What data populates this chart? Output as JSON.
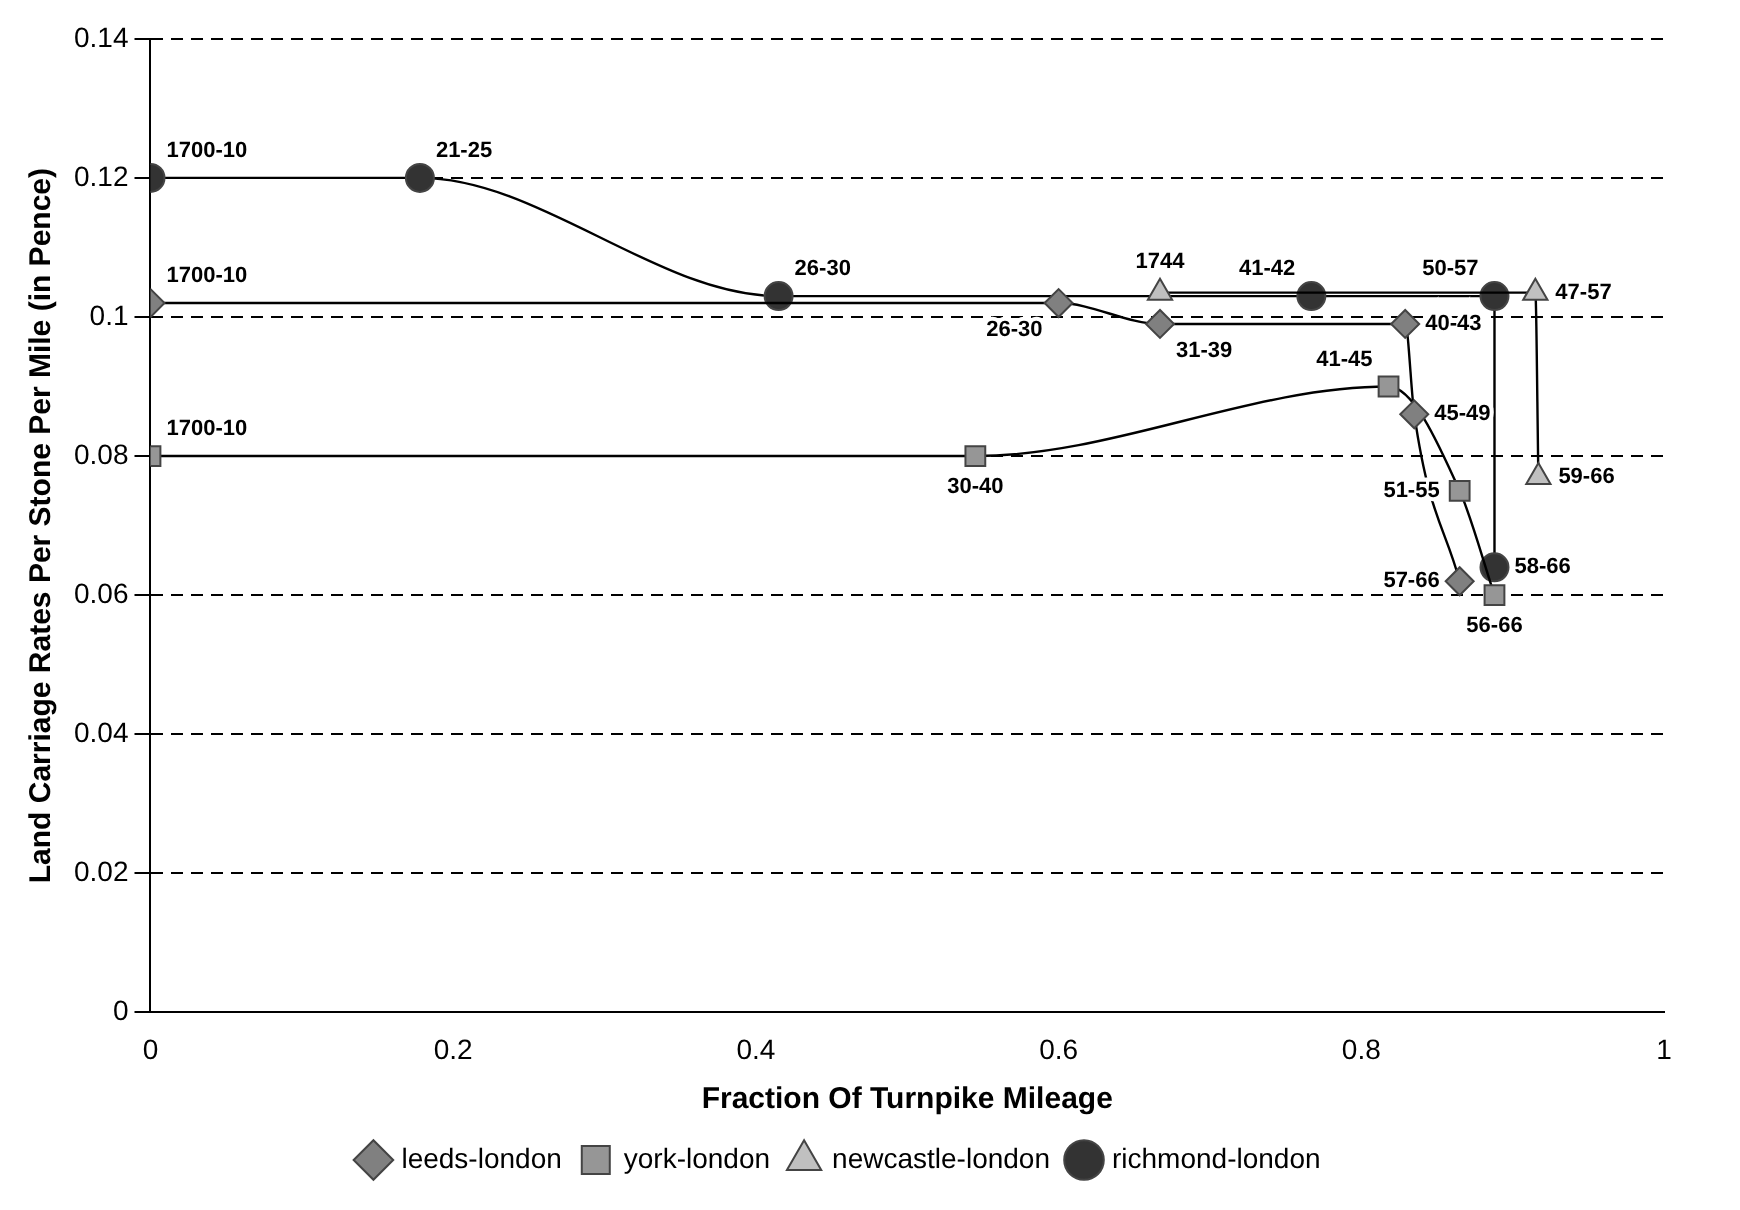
{
  "chart_data": {
    "type": "line",
    "xlabel": "Fraction Of Turnpike Mileage",
    "ylabel": "Land Carriage Rates Per Stone Per Mile (in Pence)",
    "xlim": [
      0,
      1
    ],
    "xticks": [
      0,
      0.2,
      0.4,
      0.6,
      0.8,
      1
    ],
    "ylim": [
      0,
      0.14
    ],
    "yticks": [
      0,
      0.02,
      0.04,
      0.06,
      0.08,
      0.1,
      0.12,
      0.14
    ],
    "grid": "y",
    "legend": "bottom",
    "series": [
      {
        "name": "leeds-london",
        "color": "#808080",
        "marker": "diamond",
        "x": [
          0,
          0.6,
          0.667,
          0.829,
          0.835,
          0.865
        ],
        "values": [
          0.102,
          0.102,
          0.099,
          0.099,
          0.086,
          0.062
        ]
      },
      {
        "name": "york-london",
        "color": "#969696",
        "marker": "square",
        "x": [
          0,
          0.545,
          0.818,
          0.865,
          0.888
        ],
        "values": [
          0.08,
          0.08,
          0.09,
          0.075,
          0.06
        ]
      },
      {
        "name": "newcastle-london",
        "color": "#c0c0c0",
        "marker": "triangle",
        "x": [
          0.667,
          0.915,
          0.917
        ],
        "values": [
          0.1035,
          0.1035,
          0.077
        ]
      },
      {
        "name": "richmond-london",
        "color": "#333333",
        "marker": "circle",
        "x": [
          0,
          0.178,
          0.415,
          0.767,
          0.888,
          0.888
        ],
        "values": [
          0.12,
          0.12,
          0.103,
          0.103,
          0.103,
          0.064
        ]
      }
    ],
    "annotations": [
      {
        "text": "1700-10",
        "x": 0,
        "y": 0.102
      },
      {
        "text": "26-30",
        "x": 0.6,
        "y": 0.102
      },
      {
        "text": "31-39",
        "x": 0.667,
        "y": 0.099
      },
      {
        "text": "40-43",
        "x": 0.829,
        "y": 0.099
      },
      {
        "text": "45-49",
        "x": 0.835,
        "y": 0.086
      },
      {
        "text": "57-66",
        "x": 0.865,
        "y": 0.062
      },
      {
        "text": "1700-10",
        "x": 0,
        "y": 0.08
      },
      {
        "text": "30-40",
        "x": 0.545,
        "y": 0.08
      },
      {
        "text": "41-45",
        "x": 0.818,
        "y": 0.09
      },
      {
        "text": "51-55",
        "x": 0.865,
        "y": 0.075
      },
      {
        "text": "56-66",
        "x": 0.888,
        "y": 0.06
      },
      {
        "text": "1744",
        "x": 0.667,
        "y": 0.1035
      },
      {
        "text": "47-57",
        "x": 0.915,
        "y": 0.1035
      },
      {
        "text": "59-66",
        "x": 0.917,
        "y": 0.077
      },
      {
        "text": "1700-10",
        "x": 0,
        "y": 0.12
      },
      {
        "text": "21-25",
        "x": 0.178,
        "y": 0.12
      },
      {
        "text": "26-30",
        "x": 0.415,
        "y": 0.103
      },
      {
        "text": "41-42",
        "x": 0.767,
        "y": 0.103
      },
      {
        "text": "50-57",
        "x": 0.888,
        "y": 0.103
      },
      {
        "text": "58-66",
        "x": 0.888,
        "y": 0.064
      }
    ]
  }
}
